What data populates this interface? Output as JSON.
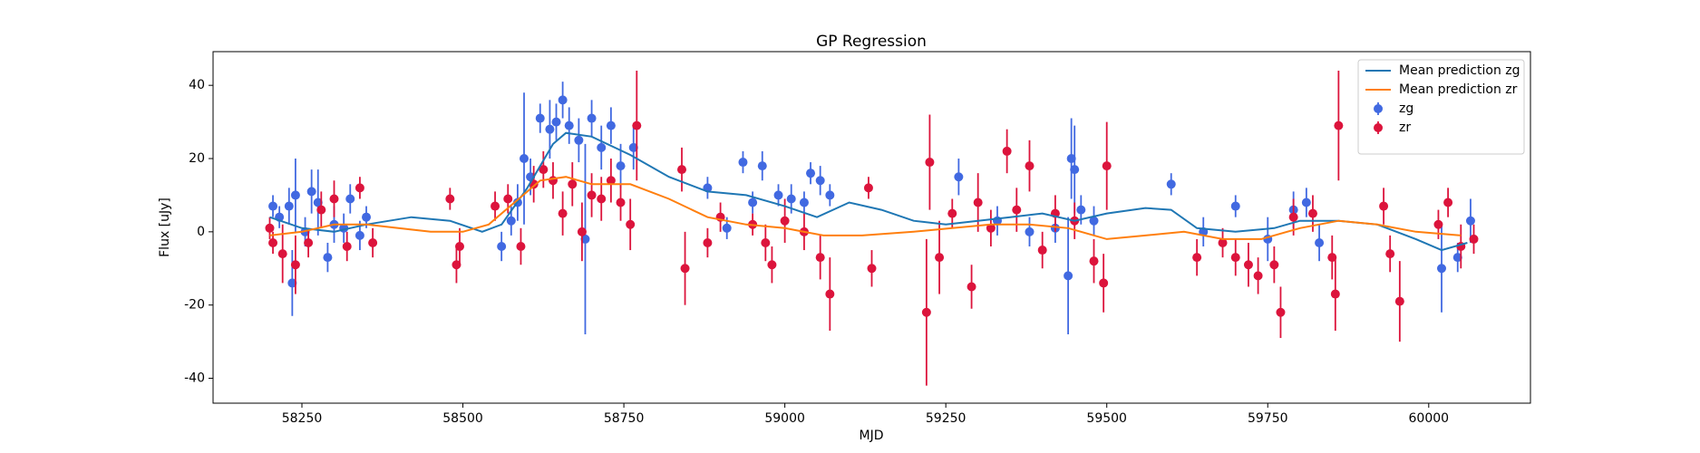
{
  "chart_data": {
    "type": "scatter",
    "title": "GP Regression",
    "xlabel": "MJD",
    "ylabel": "Flux [uJy]",
    "xlim": [
      58112,
      60158
    ],
    "ylim": [
      -46.8,
      49.2
    ],
    "xticks": [
      58250,
      58500,
      58750,
      59000,
      59250,
      59500,
      59750,
      60000
    ],
    "yticks": [
      -40,
      -20,
      0,
      20,
      40
    ],
    "legend": "upper right",
    "lines": [
      {
        "name": "Mean prediction zg",
        "color": "#1f77b4",
        "x": [
          58200,
          58250,
          58300,
          58350,
          58420,
          58480,
          58530,
          58560,
          58600,
          58640,
          58660,
          58700,
          58760,
          58820,
          58880,
          58940,
          59000,
          59050,
          59100,
          59150,
          59200,
          59250,
          59300,
          59350,
          59400,
          59450,
          59500,
          59560,
          59600,
          59640,
          59700,
          59760,
          59800,
          59860,
          59920,
          59980,
          60020,
          60060
        ],
        "values": [
          4,
          1,
          0,
          2,
          4,
          3,
          0,
          2,
          12,
          24,
          27,
          26,
          21,
          15,
          11,
          10,
          7,
          4,
          8,
          6,
          3,
          2,
          3,
          4,
          5,
          3,
          5,
          6.5,
          6,
          1,
          0,
          1,
          3,
          3,
          2,
          -2,
          -5,
          -3
        ]
      },
      {
        "name": "Mean prediction zr",
        "color": "#ff7f0e",
        "x": [
          58200,
          58250,
          58300,
          58350,
          58450,
          58500,
          58540,
          58580,
          58620,
          58660,
          58700,
          58760,
          58820,
          58880,
          58940,
          59000,
          59060,
          59120,
          59200,
          59260,
          59320,
          59380,
          59440,
          59500,
          59560,
          59620,
          59680,
          59740,
          59800,
          59860,
          59920,
          59980,
          60050
        ],
        "values": [
          -1,
          0,
          2,
          2,
          0,
          0,
          2,
          8,
          14,
          15,
          13,
          13,
          9,
          4,
          2,
          1,
          -1,
          -1,
          0,
          1,
          2,
          2,
          1,
          -2,
          -1,
          0,
          -2,
          -2,
          1,
          3,
          2,
          0,
          -1
        ]
      }
    ],
    "points": [
      {
        "name": "zg",
        "color": "#4169e1",
        "x": [
          58205,
          58215,
          58230,
          58235,
          58240,
          58255,
          58265,
          58275,
          58290,
          58300,
          58315,
          58325,
          58340,
          58350,
          58560,
          58575,
          58585,
          58595,
          58605,
          58620,
          58635,
          58645,
          58655,
          58665,
          58680,
          58690,
          58700,
          58715,
          58730,
          58745,
          58765,
          58880,
          58910,
          58935,
          58950,
          58965,
          58990,
          59010,
          59030,
          59040,
          59055,
          59070,
          59270,
          59330,
          59380,
          59420,
          59440,
          59445,
          59450,
          59460,
          59480,
          59600,
          59650,
          59700,
          59750,
          59790,
          59810,
          59830,
          60020,
          60045,
          60065
        ],
        "values": [
          7,
          4,
          7,
          -14,
          10,
          0,
          11,
          8,
          -7,
          2,
          1,
          9,
          -1,
          4,
          -4,
          3,
          8,
          20,
          15,
          31,
          28,
          30,
          36,
          29,
          25,
          -2,
          31,
          23,
          29,
          18,
          23,
          12,
          1,
          19,
          8,
          18,
          10,
          9,
          8,
          16,
          14,
          10,
          15,
          3,
          0,
          1,
          -12,
          20,
          17,
          6,
          3,
          13,
          0,
          7,
          -2,
          6,
          8,
          -3,
          -10,
          -7,
          3
        ],
        "errors": [
          3,
          3,
          5,
          9,
          10,
          4,
          6,
          9,
          4,
          5,
          4,
          4,
          4,
          3,
          4,
          4,
          5,
          18,
          5,
          4,
          8,
          5,
          5,
          5,
          6,
          26,
          5,
          6,
          5,
          6,
          6,
          3,
          3,
          3,
          3,
          4,
          3,
          4,
          3,
          3,
          4,
          3,
          5,
          4,
          4,
          4,
          16,
          11,
          12,
          4,
          4,
          3,
          4,
          3,
          6,
          5,
          4,
          5,
          12,
          4,
          6
        ]
      },
      {
        "name": "zr",
        "color": "#dc143c",
        "x": [
          58200,
          58205,
          58220,
          58240,
          58260,
          58280,
          58300,
          58320,
          58340,
          58360,
          58480,
          58490,
          58495,
          58550,
          58570,
          58590,
          58610,
          58625,
          58640,
          58655,
          58670,
          58685,
          58700,
          58715,
          58730,
          58745,
          58760,
          58770,
          58840,
          58845,
          58880,
          58900,
          58950,
          58970,
          58980,
          59000,
          59030,
          59055,
          59070,
          59130,
          59135,
          59220,
          59225,
          59240,
          59260,
          59290,
          59300,
          59320,
          59345,
          59360,
          59380,
          59400,
          59420,
          59450,
          59480,
          59495,
          59500,
          59640,
          59680,
          59700,
          59720,
          59735,
          59760,
          59770,
          59790,
          59820,
          59850,
          59855,
          59860,
          59930,
          59940,
          59955,
          60015,
          60030,
          60050,
          60070
        ],
        "values": [
          1,
          -3,
          -6,
          -9,
          -3,
          6,
          9,
          -4,
          12,
          -3,
          9,
          -9,
          -4,
          7,
          9,
          -4,
          13,
          17,
          14,
          5,
          13,
          0,
          10,
          9,
          14,
          8,
          2,
          29,
          17,
          -10,
          -3,
          4,
          2,
          -3,
          -9,
          3,
          0,
          -7,
          -17,
          12,
          -10,
          -22,
          19,
          -7,
          5,
          -15,
          8,
          1,
          22,
          6,
          18,
          -5,
          5,
          3,
          -8,
          -14,
          18,
          -7,
          -3,
          -7,
          -9,
          -12,
          -9,
          -22,
          4,
          5,
          -7,
          -17,
          29,
          7,
          -6,
          -19,
          2,
          8,
          -4,
          -2
        ],
        "errors": [
          3,
          3,
          8,
          8,
          4,
          5,
          5,
          4,
          3,
          4,
          3,
          5,
          5,
          4,
          4,
          5,
          5,
          5,
          5,
          6,
          6,
          8,
          6,
          6,
          6,
          5,
          7,
          15,
          6,
          10,
          4,
          4,
          3,
          5,
          5,
          6,
          5,
          6,
          10,
          3,
          5,
          20,
          13,
          10,
          4,
          6,
          8,
          5,
          6,
          6,
          7,
          5,
          5,
          5,
          6,
          8,
          12,
          5,
          4,
          5,
          6,
          5,
          5,
          7,
          5,
          5,
          6,
          10,
          15,
          5,
          5,
          11,
          4,
          4,
          6,
          4
        ]
      }
    ]
  }
}
